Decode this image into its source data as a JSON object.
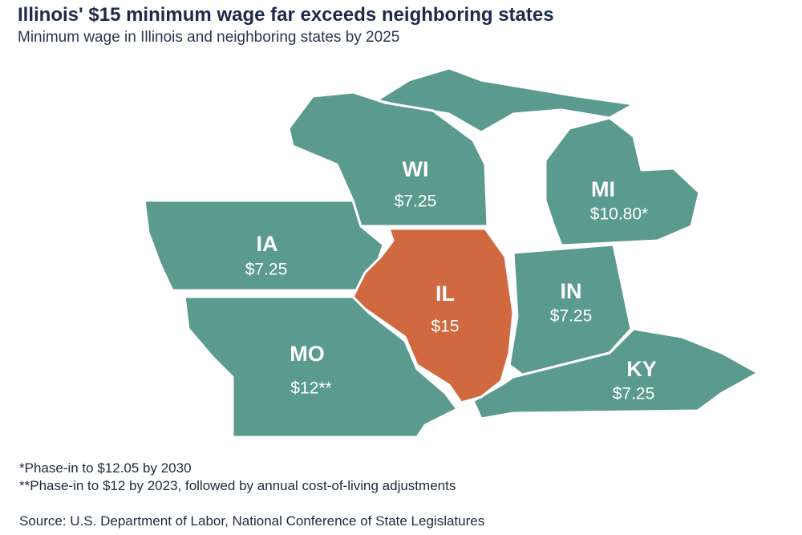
{
  "header": {
    "title": "Illinois' $15 minimum wage far exceeds neighboring states",
    "subtitle": "Minimum wage in Illinois and neighboring states by 2025"
  },
  "states": [
    {
      "abbr": "WI",
      "wage": "$7.25"
    },
    {
      "abbr": "MI",
      "wage": "$10.80*"
    },
    {
      "abbr": "IA",
      "wage": "$7.25"
    },
    {
      "abbr": "IL",
      "wage": "$15"
    },
    {
      "abbr": "IN",
      "wage": "$7.25"
    },
    {
      "abbr": "MO",
      "wage": "$12**"
    },
    {
      "abbr": "KY",
      "wage": "$7.25"
    }
  ],
  "footnotes": [
    "*Phase-in to $12.05 by 2030",
    "**Phase-in to $12 by 2023, followed by annual cost-of-living adjustments"
  ],
  "source": "Source:  U.S. Department of Labor, National Conference of State Legislatures"
}
